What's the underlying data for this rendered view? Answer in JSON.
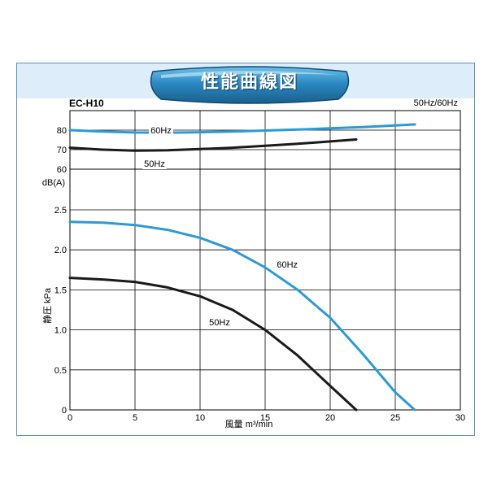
{
  "title": "性能曲線図",
  "model": "EC-H10",
  "frequency_legend": "50Hz/60Hz",
  "colors": {
    "hz60": "#2b9ad8",
    "hz50": "#1a1a1a",
    "accent": "#2a7fb0",
    "header_band": "#ddeefa"
  },
  "chart_data": [
    {
      "type": "line",
      "ylabel": "dB(A)",
      "yticks": [
        "60",
        "70",
        "80"
      ],
      "ylim": [
        60,
        80
      ],
      "xlim": [
        0,
        30
      ],
      "grid": true,
      "series": [
        {
          "name": "60Hz",
          "x": [
            0,
            2.5,
            5,
            7.5,
            10,
            12.5,
            15,
            17.5,
            20,
            22.5,
            25,
            26.5
          ],
          "y": [
            80,
            79.3,
            78.8,
            78.7,
            78.9,
            79.3,
            79.8,
            80.3,
            80.9,
            81.6,
            82.4,
            82.9
          ]
        },
        {
          "name": "50Hz",
          "x": [
            0,
            2.5,
            5,
            7.5,
            10,
            12.5,
            15,
            17.5,
            20,
            22
          ],
          "y": [
            71,
            70,
            69.5,
            69.7,
            70.3,
            71,
            72,
            73,
            74.2,
            75.2
          ]
        }
      ]
    },
    {
      "type": "line",
      "ylabel": "静圧 kPa",
      "xlabel": "風量 m³/min",
      "xticks": [
        "0",
        "5",
        "10",
        "15",
        "20",
        "25",
        "30"
      ],
      "yticks": [
        "0",
        "0.5",
        "1.0",
        "1.5",
        "2.0",
        "2.5"
      ],
      "xlim": [
        0,
        30
      ],
      "ylim": [
        0,
        2.5
      ],
      "grid": true,
      "series": [
        {
          "name": "60Hz",
          "x": [
            0,
            2.5,
            5,
            7.5,
            10,
            12.5,
            15,
            17.5,
            20,
            22.5,
            25,
            26.5
          ],
          "y": [
            2.35,
            2.34,
            2.31,
            2.25,
            2.15,
            2.0,
            1.78,
            1.5,
            1.15,
            0.7,
            0.22,
            0
          ]
        },
        {
          "name": "50Hz",
          "x": [
            0,
            2.5,
            5,
            7.5,
            10,
            12.5,
            15,
            17.5,
            20,
            22
          ],
          "y": [
            1.65,
            1.63,
            1.6,
            1.53,
            1.42,
            1.25,
            1.0,
            0.68,
            0.3,
            0
          ]
        }
      ]
    }
  ]
}
